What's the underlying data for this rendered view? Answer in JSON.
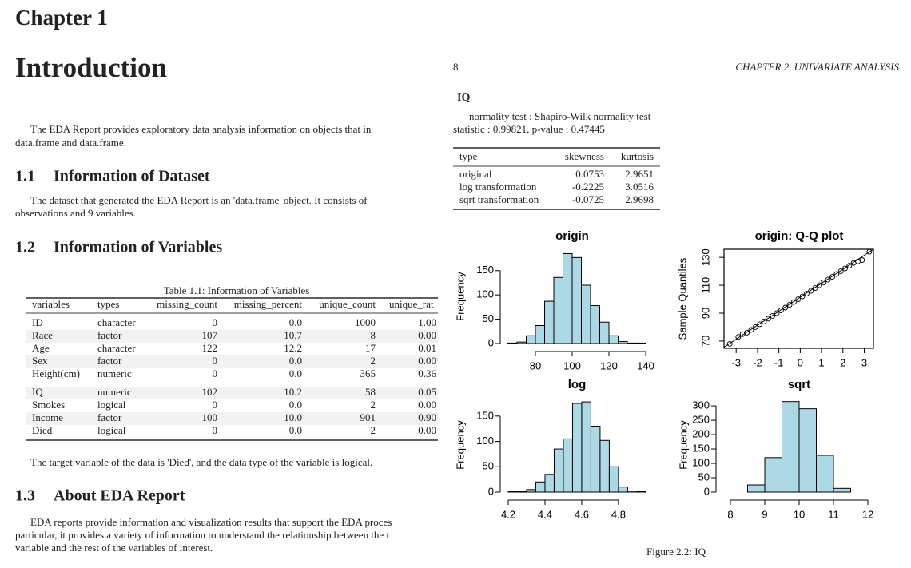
{
  "left_page": {
    "chapter": "Chapter 1",
    "title": "Introduction",
    "intro": [
      "The EDA Report provides exploratory data analysis information on objects that in",
      "data.frame and data.frame."
    ],
    "sections": [
      {
        "number": "1.1",
        "title": "Information of Dataset",
        "paragraph": [
          "The dataset that generated the EDA Report is an 'data.frame' object. It consists of",
          "observations and 9 variables."
        ]
      },
      {
        "number": "1.2",
        "title": "Information of Variables",
        "after_table": "The target variable of the data is 'Died', and the data type of the variable is logical."
      },
      {
        "number": "1.3",
        "title": "About EDA Report",
        "paragraph": [
          "EDA reports provide information and visualization results that support the EDA proces",
          "particular, it provides a variety of information to understand the relationship between the t",
          "variable and the rest of the variables of interest."
        ]
      }
    ],
    "table": {
      "caption": "Table 1.1: Information of Variables",
      "columns": [
        "variables",
        "types",
        "missing_count",
        "missing_percent",
        "unique_count",
        "unique_rat"
      ],
      "rows": [
        [
          "ID",
          "character",
          "0",
          "0.0",
          "1000",
          "1.00"
        ],
        [
          "Race",
          "factor",
          "107",
          "10.7",
          "8",
          "0.00"
        ],
        [
          "Age",
          "character",
          "122",
          "12.2",
          "17",
          "0.01"
        ],
        [
          "Sex",
          "factor",
          "0",
          "0.0",
          "2",
          "0.00"
        ],
        [
          "Height(cm)",
          "numeric",
          "0",
          "0.0",
          "365",
          "0.36"
        ],
        [
          "IQ",
          "numeric",
          "102",
          "10.2",
          "58",
          "0.05"
        ],
        [
          "Smokes",
          "logical",
          "0",
          "0.0",
          "2",
          "0.00"
        ],
        [
          "Income",
          "factor",
          "100",
          "10.0",
          "901",
          "0.90"
        ],
        [
          "Died",
          "logical",
          "0",
          "0.0",
          "2",
          "0.00"
        ]
      ]
    }
  },
  "right_page": {
    "page_number": "8",
    "running_head": "CHAPTER 2.  UNIVARIATE ANALYSIS",
    "heading": "IQ",
    "normality": [
      "normality test : Shapiro-Wilk normality test",
      "statistic : 0.99821, p-value : 0.47445"
    ],
    "stats_table": {
      "columns": [
        "type",
        "skewness",
        "kurtosis"
      ],
      "rows": [
        [
          "original",
          "0.0753",
          "2.9651"
        ],
        [
          "log transformation",
          "-0.2225",
          "3.0516"
        ],
        [
          "sqrt transformation",
          "-0.0725",
          "2.9698"
        ]
      ]
    },
    "figure": {
      "caption": "Figure 2.2: IQ",
      "panels": [
        {
          "type": "histogram",
          "title": "origin",
          "ylabel": "Frequency",
          "color": "#add8e6",
          "bins": [
            65,
            70,
            75,
            80,
            85,
            90,
            95,
            100,
            105,
            110,
            115,
            120,
            125,
            130,
            135,
            140
          ],
          "counts": [
            1,
            3,
            16,
            37,
            87,
            136,
            185,
            177,
            120,
            78,
            44,
            16,
            4,
            1,
            1
          ],
          "xlim": [
            60,
            145
          ],
          "ylim": [
            0,
            194
          ],
          "xticks": [
            80,
            100,
            120,
            140
          ],
          "yticks": [
            0,
            50,
            100,
            150
          ]
        },
        {
          "type": "scatter",
          "title": "origin: Q-Q plot",
          "ylabel": "Sample Quantiles",
          "x": [
            -3.3,
            -2.9,
            -2.7,
            -2.5,
            -2.3,
            -2.1,
            -1.9,
            -1.7,
            -1.5,
            -1.3,
            -1.1,
            -0.9,
            -0.7,
            -0.5,
            -0.3,
            -0.1,
            0.1,
            0.3,
            0.5,
            0.7,
            0.9,
            1.1,
            1.3,
            1.5,
            1.7,
            1.9,
            2.1,
            2.3,
            2.5,
            2.7,
            2.9,
            3.24
          ],
          "y": [
            68,
            73,
            75,
            76,
            78,
            80,
            82,
            84,
            86,
            88,
            90,
            92,
            94,
            96,
            98,
            100,
            102,
            104,
            106,
            108,
            110,
            112,
            114,
            116,
            118,
            120,
            122,
            124,
            126,
            127,
            128,
            134
          ],
          "xlim": [
            -3.57,
            3.43
          ],
          "ylim": [
            64.8,
            135.8
          ],
          "xticks": [
            -3,
            -2,
            -1,
            0,
            1,
            2,
            3
          ],
          "yticks": [
            70,
            90,
            110,
            130
          ]
        },
        {
          "type": "histogram",
          "title": "log",
          "ylabel": "Frequency",
          "color": "#add8e6",
          "bins": [
            4.2,
            4.25,
            4.3,
            4.35,
            4.4,
            4.45,
            4.5,
            4.55,
            4.6,
            4.65,
            4.7,
            4.75,
            4.8,
            4.85,
            4.9,
            4.95
          ],
          "counts": [
            1,
            1,
            5,
            20,
            35,
            85,
            105,
            175,
            178,
            130,
            102,
            50,
            10,
            2,
            1
          ],
          "xlim": [
            4.15,
            4.97
          ],
          "ylim": [
            0,
            186
          ],
          "xticks": [
            4.2,
            4.4,
            4.6,
            4.8
          ],
          "yticks": [
            0,
            50,
            100,
            150
          ]
        },
        {
          "type": "histogram",
          "title": "sqrt",
          "ylabel": "Frequency",
          "color": "#add8e6",
          "bins": [
            8,
            8.5,
            9,
            9.5,
            10,
            10.5,
            11,
            11.5,
            12
          ],
          "counts": [
            0,
            25,
            120,
            315,
            290,
            128,
            13,
            0
          ],
          "xlim": [
            7.8,
            12.1
          ],
          "ylim": [
            0,
            328
          ],
          "xticks": [
            8,
            9,
            10,
            11,
            12
          ],
          "yticks": [
            0,
            50,
            100,
            150,
            200,
            250,
            300
          ]
        }
      ]
    }
  }
}
